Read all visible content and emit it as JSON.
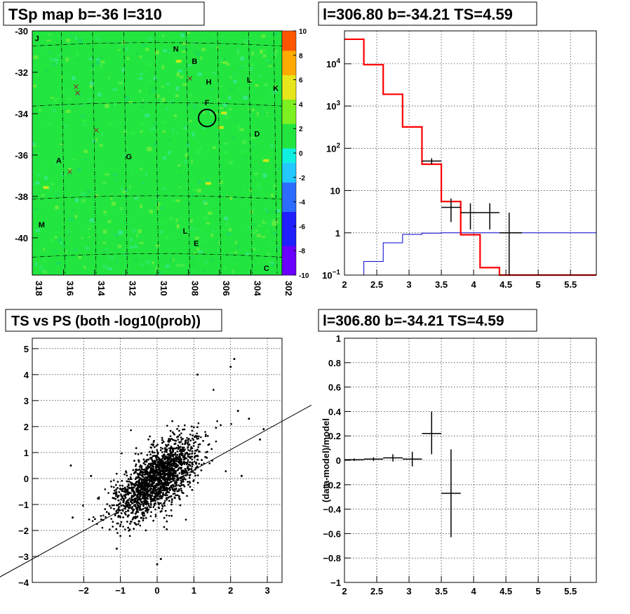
{
  "panels": {
    "map_title": "TSp map b=-36 l=310",
    "spectrum_title": "l=306.80 b=-34.21 TS=4.59",
    "scatter_title": "TS vs PS (both -log10(prob))",
    "residual_title": "l=306.80 b=-34.21 TS=4.59"
  },
  "colors": {
    "map_base": "#22e63f",
    "model": "#ff0000",
    "background": "#0000cc",
    "data": "#000000"
  },
  "chart_data": [
    {
      "type": "heatmap",
      "title": "TSp map b=-36 l=310",
      "x_ticks": [
        "318",
        "316",
        "314",
        "312",
        "310",
        "308",
        "306",
        "304",
        "302"
      ],
      "x_values": [
        318,
        316,
        314,
        312,
        310,
        308,
        306,
        304,
        302
      ],
      "y_ticks": [
        "-30",
        "-32",
        "-34",
        "-36",
        "-38",
        "-40"
      ],
      "y_values": [
        -30,
        -32,
        -34,
        -36,
        -38,
        -40
      ],
      "xlim": [
        318.0,
        302.0
      ],
      "ylim": [
        -41.8,
        -30.0
      ],
      "colorbar": {
        "ticks": [
          "10",
          "8",
          "6",
          "4",
          "2",
          "0",
          "-2",
          "-4",
          "-6",
          "-8",
          "-10"
        ],
        "values": [
          10,
          8,
          6,
          4,
          2,
          0,
          -2,
          -4,
          -6,
          -8,
          -10
        ],
        "range": [
          -10,
          10
        ]
      },
      "source_labels": [
        {
          "text": "J",
          "l": 317.7,
          "b": -30.5
        },
        {
          "text": "N",
          "l": 308.8,
          "b": -31.0
        },
        {
          "text": "B",
          "l": 307.6,
          "b": -31.6
        },
        {
          "text": "H",
          "l": 306.7,
          "b": -32.6
        },
        {
          "text": "L",
          "l": 304.1,
          "b": -32.5
        },
        {
          "text": "K",
          "l": 302.4,
          "b": -32.9
        },
        {
          "text": "F",
          "l": 306.8,
          "b": -33.6
        },
        {
          "text": "D",
          "l": 303.6,
          "b": -35.1
        },
        {
          "text": "A",
          "l": 316.3,
          "b": -36.4
        },
        {
          "text": "G",
          "l": 311.8,
          "b": -36.2
        },
        {
          "text": "M",
          "l": 317.4,
          "b": -39.5
        },
        {
          "text": "L",
          "l": 308.2,
          "b": -39.8
        },
        {
          "text": "E",
          "l": 307.5,
          "b": -40.4
        },
        {
          "text": "C",
          "l": 303.0,
          "b": -41.6
        }
      ],
      "crosses": [
        {
          "l": 315.2,
          "b": -32.7
        },
        {
          "l": 315.1,
          "b": -33.0
        },
        {
          "l": 313.9,
          "b": -34.8
        },
        {
          "l": 315.6,
          "b": -36.8
        },
        {
          "l": 307.9,
          "b": -32.3
        }
      ],
      "circle": {
        "l": 306.8,
        "b": -34.21,
        "r_deg": 0.55
      }
    },
    {
      "type": "line",
      "title": "l=306.80 b=-34.21 TS=4.59",
      "xlim": [
        2,
        5.9
      ],
      "ylim": [
        0.1,
        60000
      ],
      "log_y": true,
      "grid": true,
      "x_ticks": [
        "2",
        "2.5",
        "3",
        "3.5",
        "4",
        "4.5",
        "5",
        "5.5"
      ],
      "y_ticks": [
        "10^-1",
        "1",
        "10",
        "10^2",
        "10^3",
        "10^4"
      ],
      "y_tick_labels": [
        {
          "base": "10",
          "exp": "−1",
          "value": 0.1
        },
        {
          "base": "1",
          "exp": "",
          "value": 1
        },
        {
          "base": "10",
          "exp": "",
          "value": 10
        },
        {
          "base": "10",
          "exp": "2",
          "value": 100
        },
        {
          "base": "10",
          "exp": "3",
          "value": 1000
        },
        {
          "base": "10",
          "exp": "4",
          "value": 10000
        }
      ],
      "series": [
        {
          "kind": "model-step",
          "bin_edges": [
            2.0,
            2.3,
            2.6,
            2.9,
            3.2,
            3.5,
            3.8,
            4.1,
            4.4,
            5.9
          ],
          "values": [
            38000,
            9500,
            1900,
            320,
            42,
            5.5,
            0.9,
            0.15,
            0.1
          ]
        },
        {
          "kind": "background-step",
          "bin_edges": [
            2.0,
            2.3,
            2.6,
            2.9,
            3.2,
            3.5,
            3.8,
            5.9
          ],
          "values": [
            0.1,
            0.21,
            0.58,
            0.92,
            0.98,
            1.0,
            1.0
          ]
        },
        {
          "kind": "data-points",
          "points": [
            {
              "x": 3.35,
              "xlo": 3.2,
              "xhi": 3.5,
              "y": 50,
              "ylo": 42,
              "yhi": 58
            },
            {
              "x": 3.65,
              "xlo": 3.5,
              "xhi": 3.8,
              "y": 4.0,
              "ylo": 1.8,
              "yhi": 6.5
            },
            {
              "x": 3.95,
              "xlo": 3.8,
              "xhi": 4.1,
              "y": 3.0,
              "ylo": 1.2,
              "yhi": 5.0
            },
            {
              "x": 4.25,
              "xlo": 4.1,
              "xhi": 4.4,
              "y": 3.0,
              "ylo": 1.2,
              "yhi": 5.0
            },
            {
              "x": 4.55,
              "xlo": 4.4,
              "xhi": 4.75,
              "y": 1.0,
              "ylo": 0.1,
              "yhi": 3.0
            }
          ]
        }
      ]
    },
    {
      "type": "scatter",
      "title": "TS vs PS (both -log10(prob))",
      "xlim": [
        -3.4,
        3.4
      ],
      "ylim": [
        -4.0,
        5.4
      ],
      "grid": true,
      "x_ticks": [
        "−2",
        "−1",
        "0",
        "1",
        "2",
        "3"
      ],
      "x_tick_values": [
        -2,
        -1,
        0,
        1,
        2,
        3
      ],
      "y_ticks": [
        "−4",
        "−3",
        "−2",
        "−1",
        "0",
        "1",
        "2",
        "3",
        "4",
        "5"
      ],
      "y_tick_values": [
        -4,
        -3,
        -2,
        -1,
        0,
        1,
        2,
        3,
        4,
        5
      ],
      "reference_line": {
        "slope": 0.78,
        "intercept": -0.45
      },
      "notable_points": [
        {
          "x": -2.3,
          "y": -1.5
        },
        {
          "x": -2.35,
          "y": 0.5
        },
        {
          "x": -1.8,
          "y": 0.1
        },
        {
          "x": -1.1,
          "y": -2.7
        },
        {
          "x": 1.1,
          "y": 4.0
        },
        {
          "x": 2.1,
          "y": 4.6
        },
        {
          "x": 2.0,
          "y": 4.3
        },
        {
          "x": 2.9,
          "y": 1.9
        },
        {
          "x": 2.8,
          "y": 1.5
        },
        {
          "x": 2.3,
          "y": 0.1
        },
        {
          "x": 0.0,
          "y": -3.3
        },
        {
          "x": 0.1,
          "y": -3.1
        },
        {
          "x": 2.5,
          "y": 2.3
        },
        {
          "x": 2.2,
          "y": 2.6
        }
      ]
    },
    {
      "type": "line",
      "title": "l=306.80 b=-34.21 TS=4.59",
      "xlabel": "",
      "ylabel": "(data-model)/model",
      "xlim": [
        2,
        5.9
      ],
      "ylim": [
        -1,
        1
      ],
      "grid": true,
      "x_ticks": [
        "2",
        "2.5",
        "3",
        "3.5",
        "4",
        "4.5",
        "5",
        "5.5"
      ],
      "y_ticks": [
        "1",
        "0.8",
        "0.6",
        "0.4",
        "0.2",
        "0",
        "−0.2",
        "−0.4",
        "−0.6",
        "−0.8",
        "−1"
      ],
      "y_tick_values": [
        1,
        0.8,
        0.6,
        0.4,
        0.2,
        0,
        -0.2,
        -0.4,
        -0.6,
        -0.8,
        -1
      ],
      "points": [
        {
          "x": 2.15,
          "xlo": 2.0,
          "xhi": 2.3,
          "y": 0.005,
          "ylo": -0.005,
          "yhi": 0.015
        },
        {
          "x": 2.45,
          "xlo": 2.3,
          "xhi": 2.6,
          "y": 0.01,
          "ylo": -0.005,
          "yhi": 0.025
        },
        {
          "x": 2.75,
          "xlo": 2.6,
          "xhi": 2.9,
          "y": 0.02,
          "ylo": -0.01,
          "yhi": 0.05
        },
        {
          "x": 3.05,
          "xlo": 2.9,
          "xhi": 3.2,
          "y": 0.01,
          "ylo": -0.05,
          "yhi": 0.07
        },
        {
          "x": 3.35,
          "xlo": 3.2,
          "xhi": 3.5,
          "y": 0.22,
          "ylo": 0.05,
          "yhi": 0.4
        },
        {
          "x": 3.65,
          "xlo": 3.5,
          "xhi": 3.8,
          "y": -0.27,
          "ylo": -0.63,
          "yhi": 0.09
        }
      ]
    }
  ]
}
